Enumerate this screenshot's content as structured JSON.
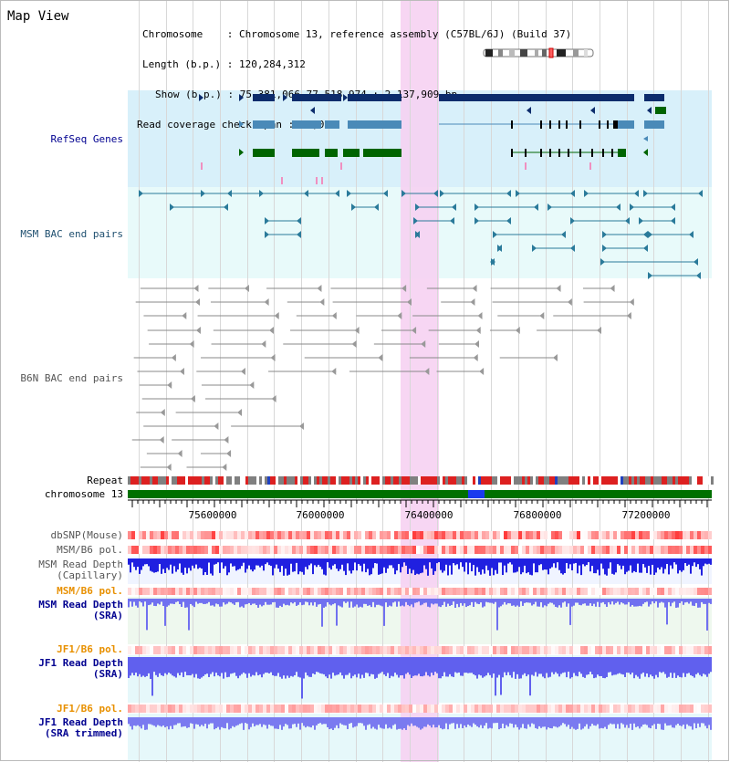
{
  "title": "Map View",
  "info": {
    "chromosome_label": "Chromosome",
    "chromosome_value": "Chromosome 13, reference assembly (C57BL/6J) (Build 37)",
    "length_label": "Length (b.p.)",
    "length_value": "120,284,312",
    "show_label": "Show (b.p.)",
    "show_value": "75,381,066-77,518,974 : 2,137,909 bp",
    "read_coverage_label": "Read coverage check span",
    "read_coverage_value": "10,000"
  },
  "tracks": {
    "refseq": "RefSeq Genes",
    "msm_bac": "MSM BAC end pairs",
    "b6n_bac": "B6N BAC end pairs",
    "repeat": "Repeat",
    "chromosome": "chromosome 13",
    "dbsnp": "dbSNP(Mouse)",
    "msm_b6_pol_1": "MSM/B6 pol.",
    "msm_read_depth_cap_1": "MSM Read Depth",
    "msm_read_depth_cap_2": "(Capillary)",
    "msm_b6_pol_2": "MSM/B6 pol.",
    "msm_read_depth_sra_1": "MSM Read Depth",
    "msm_read_depth_sra_2": "(SRA)",
    "jf1_b6_pol_1": "JF1/B6 pol.",
    "jf1_read_depth_sra_1": "JF1 Read Depth",
    "jf1_read_depth_sra_2": "(SRA)",
    "jf1_b6_pol_2": "JF1/B6 pol.",
    "jf1_read_depth_trim_1": "JF1 Read Depth",
    "jf1_read_depth_trim_2": "(SRA trimmed)"
  },
  "axis_ticks": [
    "75600000",
    "76000000",
    "76400000",
    "76800000",
    "77200000"
  ],
  "colors": {
    "refseq_dark": "#0c2c6c",
    "refseq_mid": "#4a8ab8",
    "refseq_green": "#006400",
    "msm_bac": "#2a7a9a",
    "b6n_bac": "#888888",
    "highlight": "#f4c6ee",
    "chromosome_green": "#007000",
    "chromosome_blue": "#1a3aee",
    "depth_blue": "#2020e0",
    "depth_light": "#7070f0",
    "pol_red": "#ee2020",
    "orange_label": "#e89000",
    "navy_label": "#000090",
    "teal_label": "#205070"
  }
}
